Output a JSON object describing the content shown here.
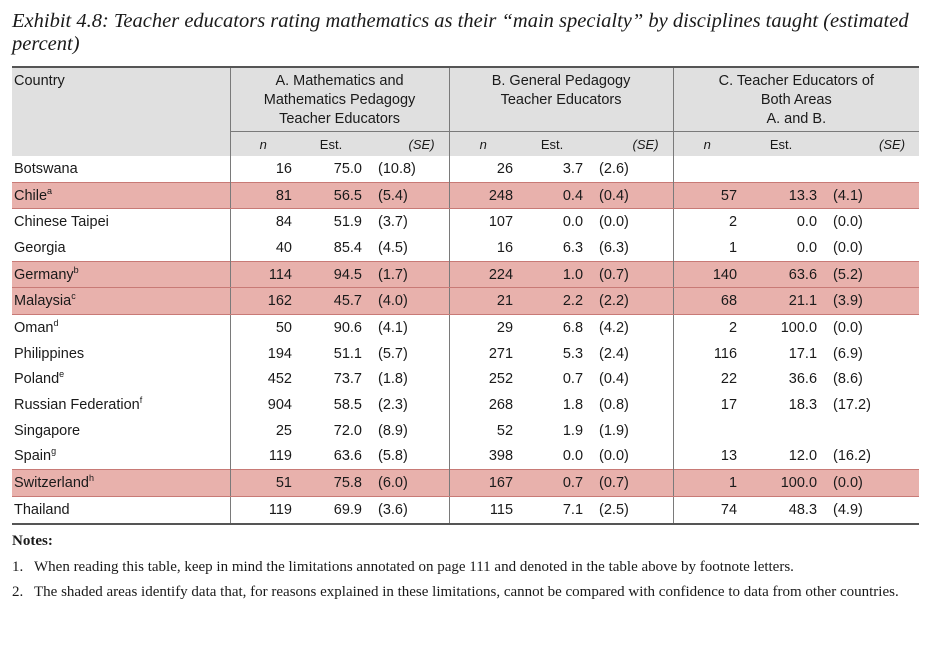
{
  "title": "Exhibit 4.8: Teacher educators rating mathematics as their “main specialty” by disciplines taught (estimated percent)",
  "headers": {
    "country": "Country",
    "group_a": [
      "A. Mathematics and",
      "Mathematics Pedagogy",
      "Teacher Educators"
    ],
    "group_b": [
      "B. General Pedagogy",
      "Teacher Educators"
    ],
    "group_c": [
      "C. Teacher Educators of",
      "Both Areas",
      "A. and B."
    ],
    "n": "n",
    "est": "Est.",
    "se": "(SE)"
  },
  "colors": {
    "shade": "#e8b1ac",
    "header_bg": "#e0e0e0"
  },
  "rows": [
    {
      "country": "Botswana",
      "sup": "",
      "shaded": false,
      "a": [
        "16",
        "75.0",
        "(10.8)"
      ],
      "b": [
        "26",
        "3.7",
        "(2.6)"
      ],
      "c": [
        "",
        "",
        ""
      ]
    },
    {
      "country": "Chile",
      "sup": "a",
      "shaded": true,
      "a": [
        "81",
        "56.5",
        "(5.4)"
      ],
      "b": [
        "248",
        "0.4",
        "(0.4)"
      ],
      "c": [
        "57",
        "13.3",
        "(4.1)"
      ]
    },
    {
      "country": "Chinese Taipei",
      "sup": "",
      "shaded": false,
      "a": [
        "84",
        "51.9",
        "(3.7)"
      ],
      "b": [
        "107",
        "0.0",
        "(0.0)"
      ],
      "c": [
        "2",
        "0.0",
        "(0.0)"
      ]
    },
    {
      "country": "Georgia",
      "sup": "",
      "shaded": false,
      "a": [
        "40",
        "85.4",
        "(4.5)"
      ],
      "b": [
        "16",
        "6.3",
        "(6.3)"
      ],
      "c": [
        "1",
        "0.0",
        "(0.0)"
      ]
    },
    {
      "country": "Germany",
      "sup": "b",
      "shaded": true,
      "a": [
        "114",
        "94.5",
        "(1.7)"
      ],
      "b": [
        "224",
        "1.0",
        "(0.7)"
      ],
      "c": [
        "140",
        "63.6",
        "(5.2)"
      ]
    },
    {
      "country": "Malaysia",
      "sup": "c",
      "shaded": true,
      "a": [
        "162",
        "45.7",
        "(4.0)"
      ],
      "b": [
        "21",
        "2.2",
        "(2.2)"
      ],
      "c": [
        "68",
        "21.1",
        "(3.9)"
      ]
    },
    {
      "country": "Oman",
      "sup": "d",
      "shaded": false,
      "a": [
        "50",
        "90.6",
        "(4.1)"
      ],
      "b": [
        "29",
        "6.8",
        "(4.2)"
      ],
      "c": [
        "2",
        "100.0",
        "(0.0)"
      ]
    },
    {
      "country": "Philippines",
      "sup": "",
      "shaded": false,
      "a": [
        "194",
        "51.1",
        "(5.7)"
      ],
      "b": [
        "271",
        "5.3",
        "(2.4)"
      ],
      "c": [
        "116",
        "17.1",
        "(6.9)"
      ]
    },
    {
      "country": "Poland",
      "sup": "e",
      "shaded": false,
      "a": [
        "452",
        "73.7",
        "(1.8)"
      ],
      "b": [
        "252",
        "0.7",
        "(0.4)"
      ],
      "c": [
        "22",
        "36.6",
        "(8.6)"
      ]
    },
    {
      "country": "Russian Federation",
      "sup": "f",
      "shaded": false,
      "a": [
        "904",
        "58.5",
        "(2.3)"
      ],
      "b": [
        "268",
        "1.8",
        "(0.8)"
      ],
      "c": [
        "17",
        "18.3",
        "(17.2)"
      ]
    },
    {
      "country": "Singapore",
      "sup": "",
      "shaded": false,
      "a": [
        "25",
        "72.0",
        "(8.9)"
      ],
      "b": [
        "52",
        "1.9",
        "(1.9)"
      ],
      "c": [
        "",
        "",
        ""
      ]
    },
    {
      "country": "Spain",
      "sup": "g",
      "shaded": false,
      "a": [
        "119",
        "63.6",
        "(5.8)"
      ],
      "b": [
        "398",
        "0.0",
        "(0.0)"
      ],
      "c": [
        "13",
        "12.0",
        "(16.2)"
      ]
    },
    {
      "country": "Switzerland",
      "sup": "h",
      "shaded": true,
      "a": [
        "51",
        "75.8",
        "(6.0)"
      ],
      "b": [
        "167",
        "0.7",
        "(0.7)"
      ],
      "c": [
        "1",
        "100.0",
        "(0.0)"
      ]
    },
    {
      "country": "Thailand",
      "sup": "",
      "shaded": false,
      "a": [
        "119",
        "69.9",
        "(3.6)"
      ],
      "b": [
        "115",
        "7.1",
        "(2.5)"
      ],
      "c": [
        "74",
        "48.3",
        "(4.9)"
      ]
    }
  ],
  "notes": {
    "heading": "Notes:",
    "items": [
      {
        "num": "1.",
        "text": "When reading this table, keep in mind the limitations annotated on page 111 and denoted in the table above by footnote letters."
      },
      {
        "num": "2.",
        "text": "The shaded areas identify data that, for reasons explained in these limitations, cannot be compared with confidence to data from other countries."
      }
    ]
  }
}
